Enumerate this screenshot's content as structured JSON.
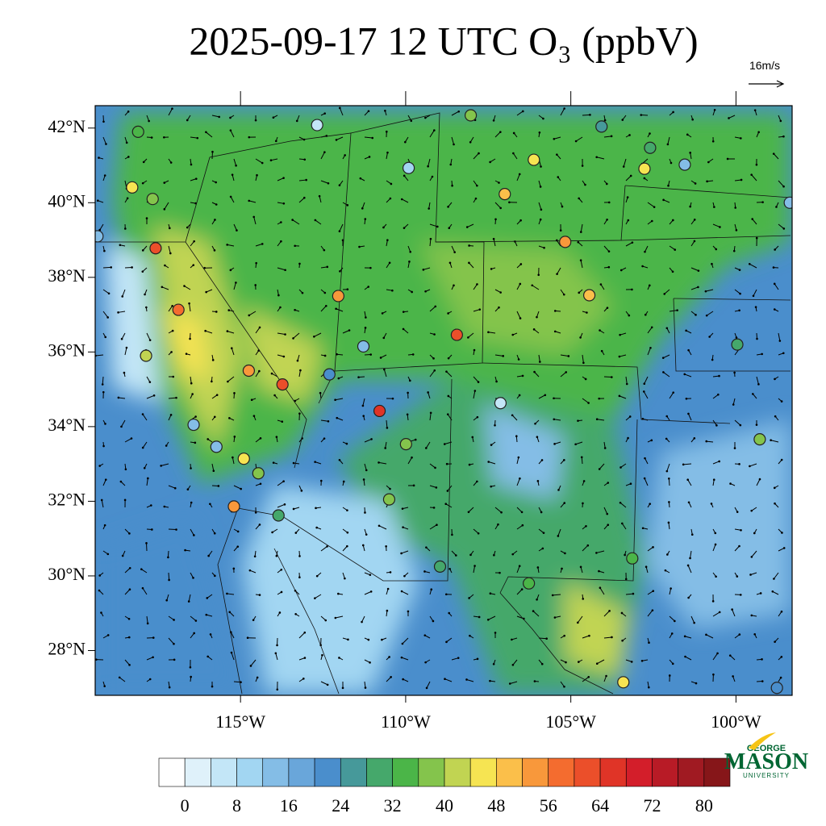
{
  "title": "2025-09-17 12 UTC O₃ (ppbV)",
  "vector_reference": "16m/s",
  "map": {
    "lonlim": [
      -119.4,
      -98.3
    ],
    "latlim": [
      26.8,
      42.6
    ],
    "lonticks": [
      {
        "value": -115,
        "label": "115°W"
      },
      {
        "value": -110,
        "label": "110°W"
      },
      {
        "value": -105,
        "label": "105°W"
      },
      {
        "value": -100,
        "label": "100°W"
      }
    ],
    "latticks": [
      {
        "value": 28,
        "label": "28°N"
      },
      {
        "value": 30,
        "label": "30°N"
      },
      {
        "value": 32,
        "label": "32°N"
      },
      {
        "value": 34,
        "label": "34°N"
      },
      {
        "value": 36,
        "label": "36°N"
      },
      {
        "value": 38,
        "label": "38°N"
      },
      {
        "value": 40,
        "label": "40°N"
      },
      {
        "value": 42,
        "label": "42°N"
      }
    ],
    "stations": [
      {
        "lon": -117.57,
        "lat": 38.78,
        "value": 60
      },
      {
        "lon": -116.88,
        "lat": 37.13,
        "value": 58
      },
      {
        "lon": -113.73,
        "lat": 35.13,
        "value": 62
      },
      {
        "lon": -110.79,
        "lat": 34.42,
        "value": 64
      },
      {
        "lon": -108.45,
        "lat": 36.46,
        "value": 60
      },
      {
        "lon": -112.04,
        "lat": 37.5,
        "value": 54
      },
      {
        "lon": -118.28,
        "lat": 40.41,
        "value": 46
      },
      {
        "lon": -117.66,
        "lat": 40.1,
        "value": 38
      },
      {
        "lon": -114.75,
        "lat": 35.5,
        "value": 52
      },
      {
        "lon": -115.2,
        "lat": 31.86,
        "value": 52
      },
      {
        "lon": -114.9,
        "lat": 33.14,
        "value": 46
      },
      {
        "lon": -112.68,
        "lat": 42.08,
        "value": 4
      },
      {
        "lon": -109.91,
        "lat": 40.93,
        "value": 10
      },
      {
        "lon": -118.1,
        "lat": 41.9,
        "value": 34
      },
      {
        "lon": -108.03,
        "lat": 42.34,
        "value": 38
      },
      {
        "lon": -106.12,
        "lat": 41.15,
        "value": 44
      },
      {
        "lon": -107.0,
        "lat": 40.23,
        "value": 48
      },
      {
        "lon": -104.07,
        "lat": 42.04,
        "value": 24
      },
      {
        "lon": -102.6,
        "lat": 41.47,
        "value": 30
      },
      {
        "lon": -102.77,
        "lat": 40.91,
        "value": 46
      },
      {
        "lon": -101.55,
        "lat": 41.02,
        "value": 12
      },
      {
        "lon": -98.37,
        "lat": 40.0,
        "value": 14
      },
      {
        "lon": -105.17,
        "lat": 38.95,
        "value": 52
      },
      {
        "lon": -104.44,
        "lat": 37.52,
        "value": 48
      },
      {
        "lon": -99.96,
        "lat": 36.2,
        "value": 28
      },
      {
        "lon": -99.28,
        "lat": 33.66,
        "value": 36
      },
      {
        "lon": -103.14,
        "lat": 30.47,
        "value": 34
      },
      {
        "lon": -103.41,
        "lat": 27.15,
        "value": 44
      },
      {
        "lon": -106.27,
        "lat": 29.8,
        "value": 34
      },
      {
        "lon": -107.13,
        "lat": 34.63,
        "value": 4
      },
      {
        "lon": -111.28,
        "lat": 36.15,
        "value": 14
      },
      {
        "lon": -112.31,
        "lat": 35.4,
        "value": 20
      },
      {
        "lon": -115.73,
        "lat": 33.46,
        "value": 14
      },
      {
        "lon": -116.42,
        "lat": 34.05,
        "value": 12
      },
      {
        "lon": -117.86,
        "lat": 35.9,
        "value": 40
      },
      {
        "lon": -110.5,
        "lat": 32.05,
        "value": 38
      },
      {
        "lon": -98.76,
        "lat": 27.0,
        "value": 22
      },
      {
        "lon": -119.33,
        "lat": 39.1,
        "value": 14
      },
      {
        "lon": -109.99,
        "lat": 33.53,
        "value": 36
      },
      {
        "lon": -113.85,
        "lat": 31.62,
        "value": 28
      },
      {
        "lon": -108.96,
        "lat": 30.25,
        "value": 28
      },
      {
        "lon": -114.46,
        "lat": 32.75,
        "value": 36
      }
    ]
  },
  "colorbar": {
    "lim": [
      -4,
      84
    ],
    "ticks": [
      0,
      8,
      16,
      24,
      32,
      40,
      48,
      56,
      64,
      72,
      80
    ],
    "colors": [
      "#ffffff",
      "#dff1fa",
      "#c3e6f7",
      "#a2d6f2",
      "#84bde6",
      "#69a6da",
      "#4a8ecc",
      "#46999a",
      "#45a86b",
      "#4bb548",
      "#84c44c",
      "#c1d452",
      "#f6e452",
      "#fbbf4a",
      "#f8983b",
      "#f46c2f",
      "#eb4f2a",
      "#e03427",
      "#d31e2a",
      "#b81b26",
      "#a01a22",
      "#861619"
    ]
  },
  "logo": {
    "line1": "GEORGE",
    "line2": "MASON",
    "line3": "UNIVERSITY"
  }
}
